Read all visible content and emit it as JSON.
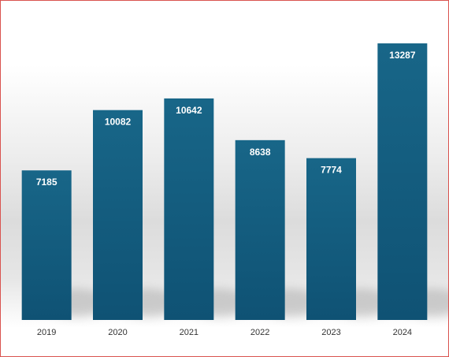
{
  "chart_data": {
    "type": "bar",
    "categories": [
      "2019",
      "2020",
      "2021",
      "2022",
      "2023",
      "2024"
    ],
    "values": [
      7185,
      10082,
      10642,
      8638,
      7774,
      13287
    ],
    "title": "",
    "xlabel": "",
    "ylabel": "",
    "ylim": [
      0,
      14500
    ],
    "grid": false,
    "legend": "none",
    "data_labels": "inside-top",
    "bar_color": "#135b7e",
    "label_color": "#ffffff",
    "frame_border_color": "#d9534f"
  }
}
